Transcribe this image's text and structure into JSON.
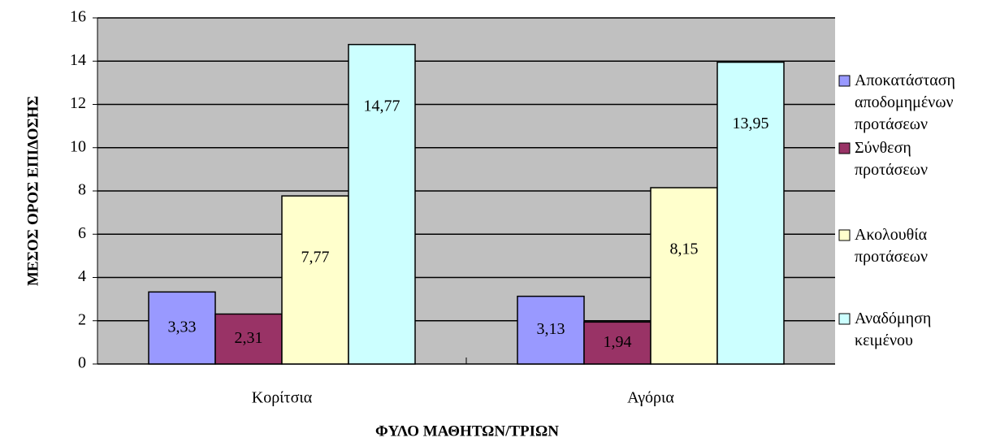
{
  "chart_data": {
    "type": "bar",
    "categories": [
      "Κορίτσια",
      "Αγόρια"
    ],
    "series": [
      {
        "name": "Αποκατάσταση αποδομημένων προτάσεων",
        "color": "#9999ff",
        "values": [
          3.33,
          3.13
        ],
        "value_labels": [
          "3,33",
          "3,13"
        ]
      },
      {
        "name": "Σύνθεση προτάσεων",
        "color": "#993366",
        "values": [
          2.31,
          1.94
        ],
        "value_labels": [
          "2,31",
          "1,94"
        ]
      },
      {
        "name": "Ακολουθία προτάσεων",
        "color": "#ffffcc",
        "values": [
          7.77,
          8.15
        ],
        "value_labels": [
          "7,77",
          "8,15"
        ]
      },
      {
        "name": "Αναδόμηση κειμένου",
        "color": "#ccffff",
        "values": [
          14.77,
          13.95
        ],
        "value_labels": [
          "14,77",
          "13,95"
        ]
      }
    ],
    "xlabel": "ΦΥΛΟ ΜΑΘΗΤΩΝ/ΤΡΙΩΝ",
    "ylabel": "ΜΕΣΟΣ ΟΡΟΣ ΕΠΙΔΟΣΗΣ",
    "ylim": [
      0,
      16
    ],
    "yticks": [
      0,
      2,
      4,
      6,
      8,
      10,
      12,
      14,
      16
    ],
    "grid": true,
    "legend": "right"
  }
}
